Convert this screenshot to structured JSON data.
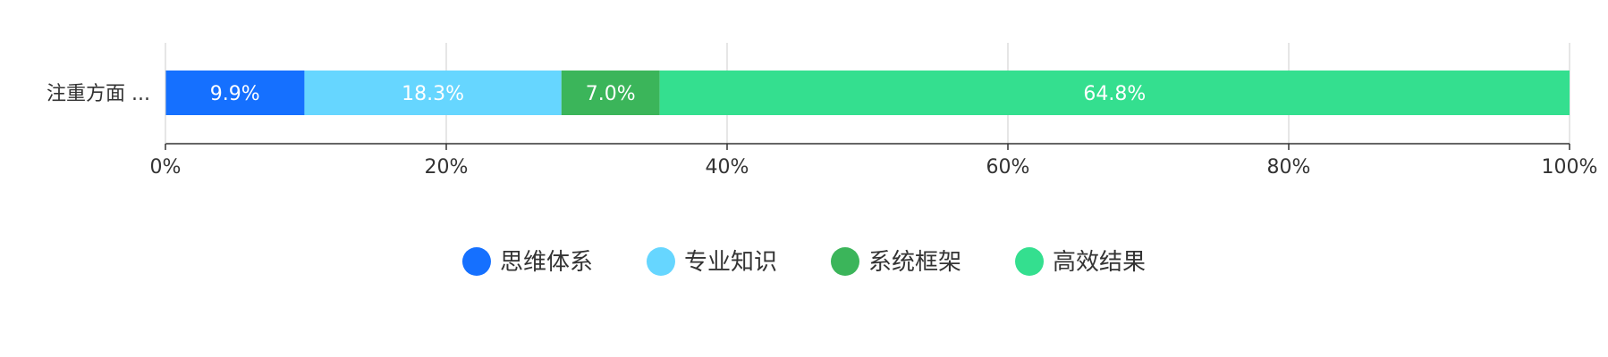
{
  "chart_data": {
    "type": "bar",
    "orientation": "horizontal",
    "stacked": true,
    "categories": [
      "注重方面 ..."
    ],
    "series": [
      {
        "name": "思维体系",
        "values": [
          9.9
        ],
        "label": "9.9%",
        "color": "#1570ff"
      },
      {
        "name": "专业知识",
        "values": [
          18.3
        ],
        "label": "18.3%",
        "color": "#66d6ff"
      },
      {
        "name": "系统框架",
        "values": [
          7.0
        ],
        "label": "7.0%",
        "color": "#3bb55a"
      },
      {
        "name": "高效结果",
        "values": [
          64.8
        ],
        "label": "64.8%",
        "color": "#34df8f"
      }
    ],
    "xlim": [
      0,
      100
    ],
    "x_ticks": [
      "0%",
      "20%",
      "40%",
      "60%",
      "80%",
      "100%"
    ],
    "grid": true,
    "legend_position": "bottom"
  }
}
